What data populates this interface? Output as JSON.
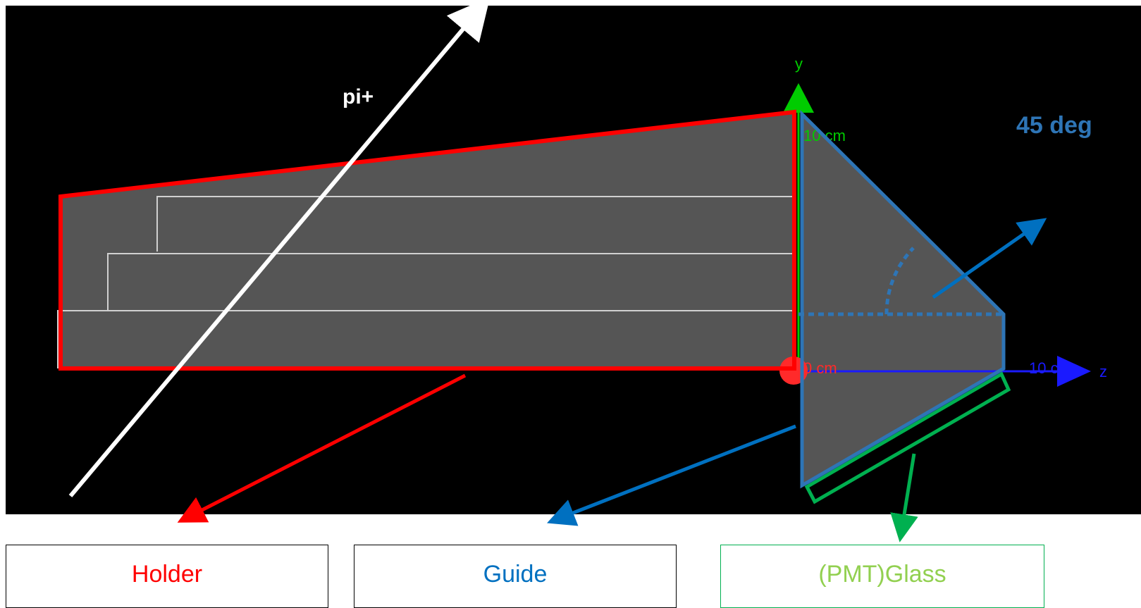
{
  "viewer": {
    "particle_label": "pi+",
    "angle_label": "45 deg",
    "axis_y_label": "y",
    "axis_z_label": "z",
    "tick_y_10": "10 cm",
    "tick_origin": "0 cm",
    "tick_z_10": "10 cm"
  },
  "legend": {
    "holder": "Holder",
    "guide": "Guide",
    "glass": "(PMT)Glass"
  },
  "colors": {
    "background": "#000000",
    "holder": "#ff0000",
    "guide": "#0070c0",
    "glass": "#00b050",
    "particle": "#ffffff",
    "solid": "#555555",
    "axis_y": "#00cc00",
    "axis_z": "#1a1aff",
    "origin": "#ff2a2a"
  }
}
